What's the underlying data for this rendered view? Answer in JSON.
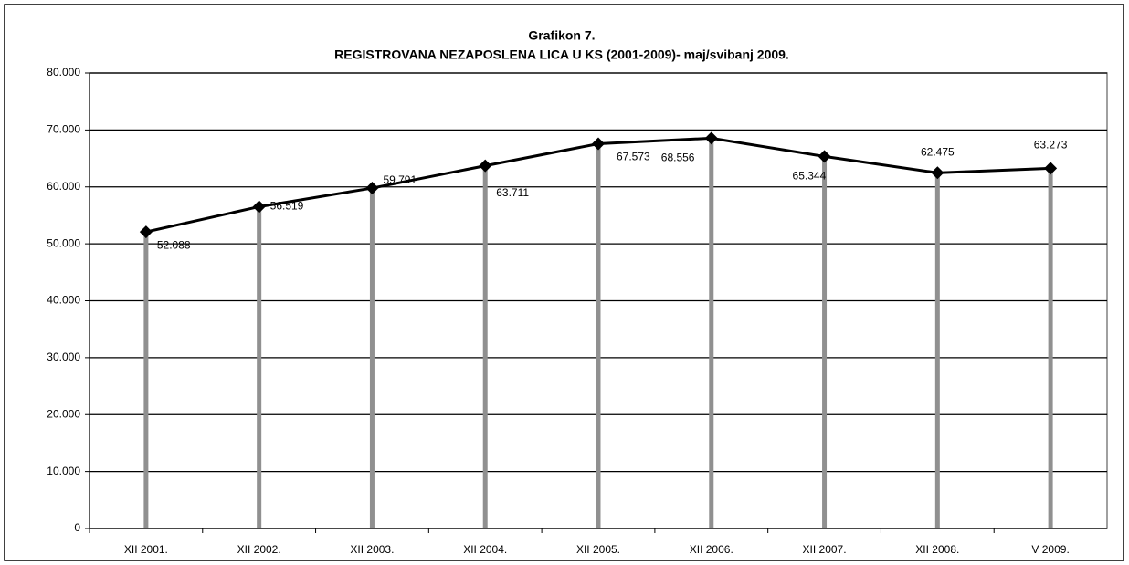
{
  "chart_data": {
    "type": "line",
    "title": "Grafikon 7.",
    "subtitle": "REGISTROVANA NEZAPOSLENA LICA U KS  (2001-2009)- maj/svibanj 2009.",
    "categories": [
      "XII 2001.",
      "XII 2002.",
      "XII 2003.",
      "XII 2004.",
      "XII 2005.",
      "XII  2006.",
      "XII 2007.",
      "XII 2008.",
      "V 2009."
    ],
    "values": [
      52088,
      56519,
      59791,
      63711,
      67573,
      68556,
      65344,
      62475,
      63273
    ],
    "value_labels": [
      "52.088",
      "56.519",
      "59.791",
      "63.711",
      "67.573",
      "68.556",
      "65.344",
      "62.475",
      "63.273"
    ],
    "color": "#000000",
    "drop_line_color": "#909090",
    "ylim": [
      0,
      80000
    ],
    "yticks": [
      0,
      {
        "value": 10000,
        "label": "10.000"
      },
      {
        "value": 20000,
        "label": "20.000"
      },
      {
        "value": 30000,
        "label": "30.000"
      },
      {
        "value": 40000,
        "label": "40.000"
      },
      {
        "value": 50000,
        "label": "50.000"
      },
      {
        "value": 60000,
        "label": "60.000"
      },
      {
        "value": 70000,
        "label": "70.000"
      },
      {
        "value": 80000,
        "label": "80.000"
      }
    ],
    "grid": true
  }
}
